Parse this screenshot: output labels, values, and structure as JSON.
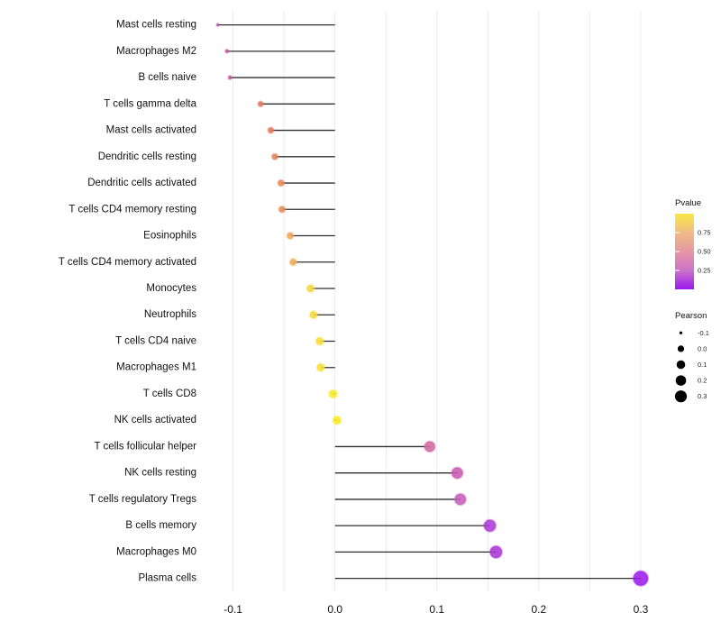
{
  "chart_data": {
    "type": "scatter",
    "variant": "horizontal-lollipop",
    "title": "",
    "xlabel": "",
    "ylabel": "",
    "x_tick_labels": [
      "-0.1",
      "0.0",
      "0.1",
      "0.2",
      "0.3"
    ],
    "x_ticks": [
      -0.1,
      0.0,
      0.1,
      0.2,
      0.3
    ],
    "xlim": [
      -0.135,
      0.325
    ],
    "grid": {
      "vertical_step": 0.05,
      "color": "#EBEBEB",
      "horizontal_lines": false
    },
    "baseline": 0.0,
    "stem_color": "#2F2F2F",
    "categories": [
      "Mast cells resting",
      "Macrophages M2",
      "B cells naive",
      "T cells gamma delta",
      "Mast cells activated",
      "Dendritic cells resting",
      "Dendritic cells activated",
      "T cells CD4 memory resting",
      "Eosinophils",
      "T cells CD4 memory activated",
      "Monocytes",
      "Neutrophils",
      "T cells CD4 naive",
      "Macrophages M1",
      "T cells CD8",
      "NK cells activated",
      "T cells follicular helper",
      "NK cells resting",
      "T cells regulatory  Tregs",
      "B cells memory",
      "Macrophages M0",
      "Plasma cells"
    ],
    "series": [
      {
        "name": "Pearson",
        "values": [
          -0.115,
          -0.106,
          -0.103,
          -0.073,
          -0.063,
          -0.059,
          -0.053,
          -0.052,
          -0.044,
          -0.041,
          -0.024,
          -0.021,
          -0.015,
          -0.014,
          -0.002,
          0.002,
          0.093,
          0.12,
          0.123,
          0.152,
          0.158,
          0.3
        ]
      }
    ],
    "point_colors": [
      "#B04E9D",
      "#C0549C",
      "#C2559C",
      "#DF765F",
      "#E07B5B",
      "#E2855C",
      "#E78A58",
      "#E78D57",
      "#EFA75A",
      "#F0AC55",
      "#F6D73C",
      "#F6D93A",
      "#F8DF36",
      "#F8E034",
      "#FAEB25",
      "#FAEB25",
      "#D0679F",
      "#C75AB4",
      "#C65FBC",
      "#AE3AD3",
      "#AB37D5",
      "#9C1EEB"
    ],
    "legend_position": "right",
    "legends": {
      "pvalue": {
        "title": "Pvalue",
        "tick_labels": [
          "0.75",
          "0.50",
          "0.25"
        ],
        "tick_values": [
          0.75,
          0.5,
          0.25
        ],
        "scale_top": 1.0,
        "scale_bottom": 0.0,
        "gradient_top_to_bottom": [
          "#F9E848",
          "#EFBC85",
          "#E697A5",
          "#CC74C8",
          "#9B17F0"
        ]
      },
      "pearson": {
        "title": "Pearson",
        "labels": [
          "-0.1",
          "0.0",
          "0.1",
          "0.2",
          "0.3"
        ],
        "values": [
          -0.1,
          0.0,
          0.1,
          0.2,
          0.3
        ],
        "dot_color": "#000000"
      }
    }
  }
}
